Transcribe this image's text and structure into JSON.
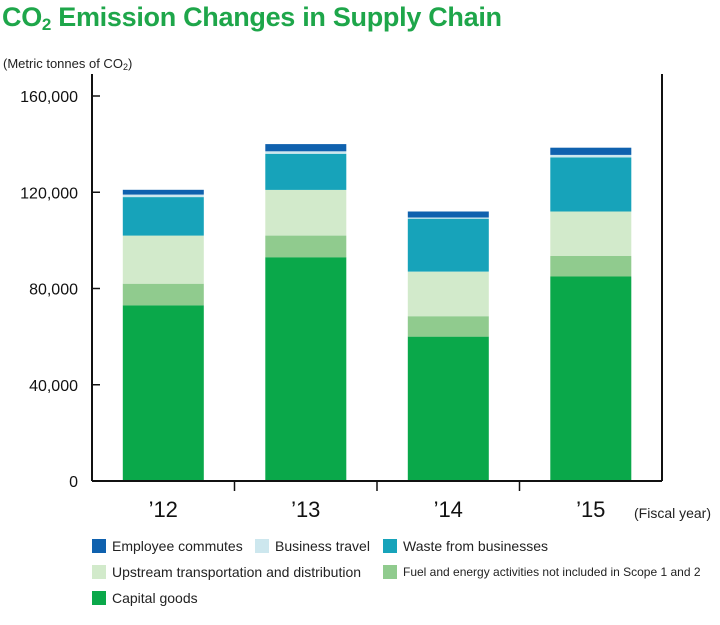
{
  "header": {
    "title_main": "CO",
    "title_sub": "2",
    "title_rest": " Emission Changes in Supply Chain",
    "unit_main": "(Metric tonnes of CO",
    "unit_sub": "2",
    "unit_end": ")"
  },
  "chart_data": {
    "type": "bar",
    "stacked": true,
    "categories": [
      "’12",
      "’13",
      "’14",
      "’15"
    ],
    "xlabel": "(Fiscal year)",
    "ylabel": "(Metric tonnes of CO2)",
    "ylim": [
      0,
      160000
    ],
    "yticks": [
      0,
      40000,
      80000,
      120000,
      160000
    ],
    "ytick_labels": [
      "0",
      "40,000",
      "80,000",
      "120,000",
      "160,000"
    ],
    "grid": false,
    "legend_position": "bottom",
    "series": [
      {
        "name": "Capital goods",
        "color": "#0aa84a",
        "values": [
          73000,
          93000,
          60000,
          85000
        ]
      },
      {
        "name": "Fuel and energy activities not included in Scope 1 and  2",
        "color": "#90cb8e",
        "values": [
          9000,
          9000,
          8500,
          8500
        ]
      },
      {
        "name": "Upstream transportation and distribution",
        "color": "#d2eacb",
        "values": [
          20000,
          19000,
          18500,
          18500
        ]
      },
      {
        "name": "Waste from businesses",
        "color": "#17a3ba",
        "values": [
          16000,
          15000,
          22000,
          22500
        ]
      },
      {
        "name": "Business travel",
        "color": "#cde7ee",
        "values": [
          1000,
          1000,
          500,
          1000
        ]
      },
      {
        "name": "Employee commutes",
        "color": "#0f61ae",
        "values": [
          2000,
          3000,
          2500,
          3000
        ]
      }
    ]
  },
  "legend": [
    {
      "name": "Employee commutes",
      "color": "#0f61ae"
    },
    {
      "name": "Business travel",
      "color": "#cde7ee"
    },
    {
      "name": "Waste from businesses",
      "color": "#17a3ba"
    },
    {
      "name": "Upstream transportation and distribution",
      "color": "#d2eacb"
    },
    {
      "name": "Fuel and energy activities not included in Scope 1 and  2",
      "color": "#90cb8e"
    },
    {
      "name": "Capital goods",
      "color": "#0aa84a"
    }
  ]
}
